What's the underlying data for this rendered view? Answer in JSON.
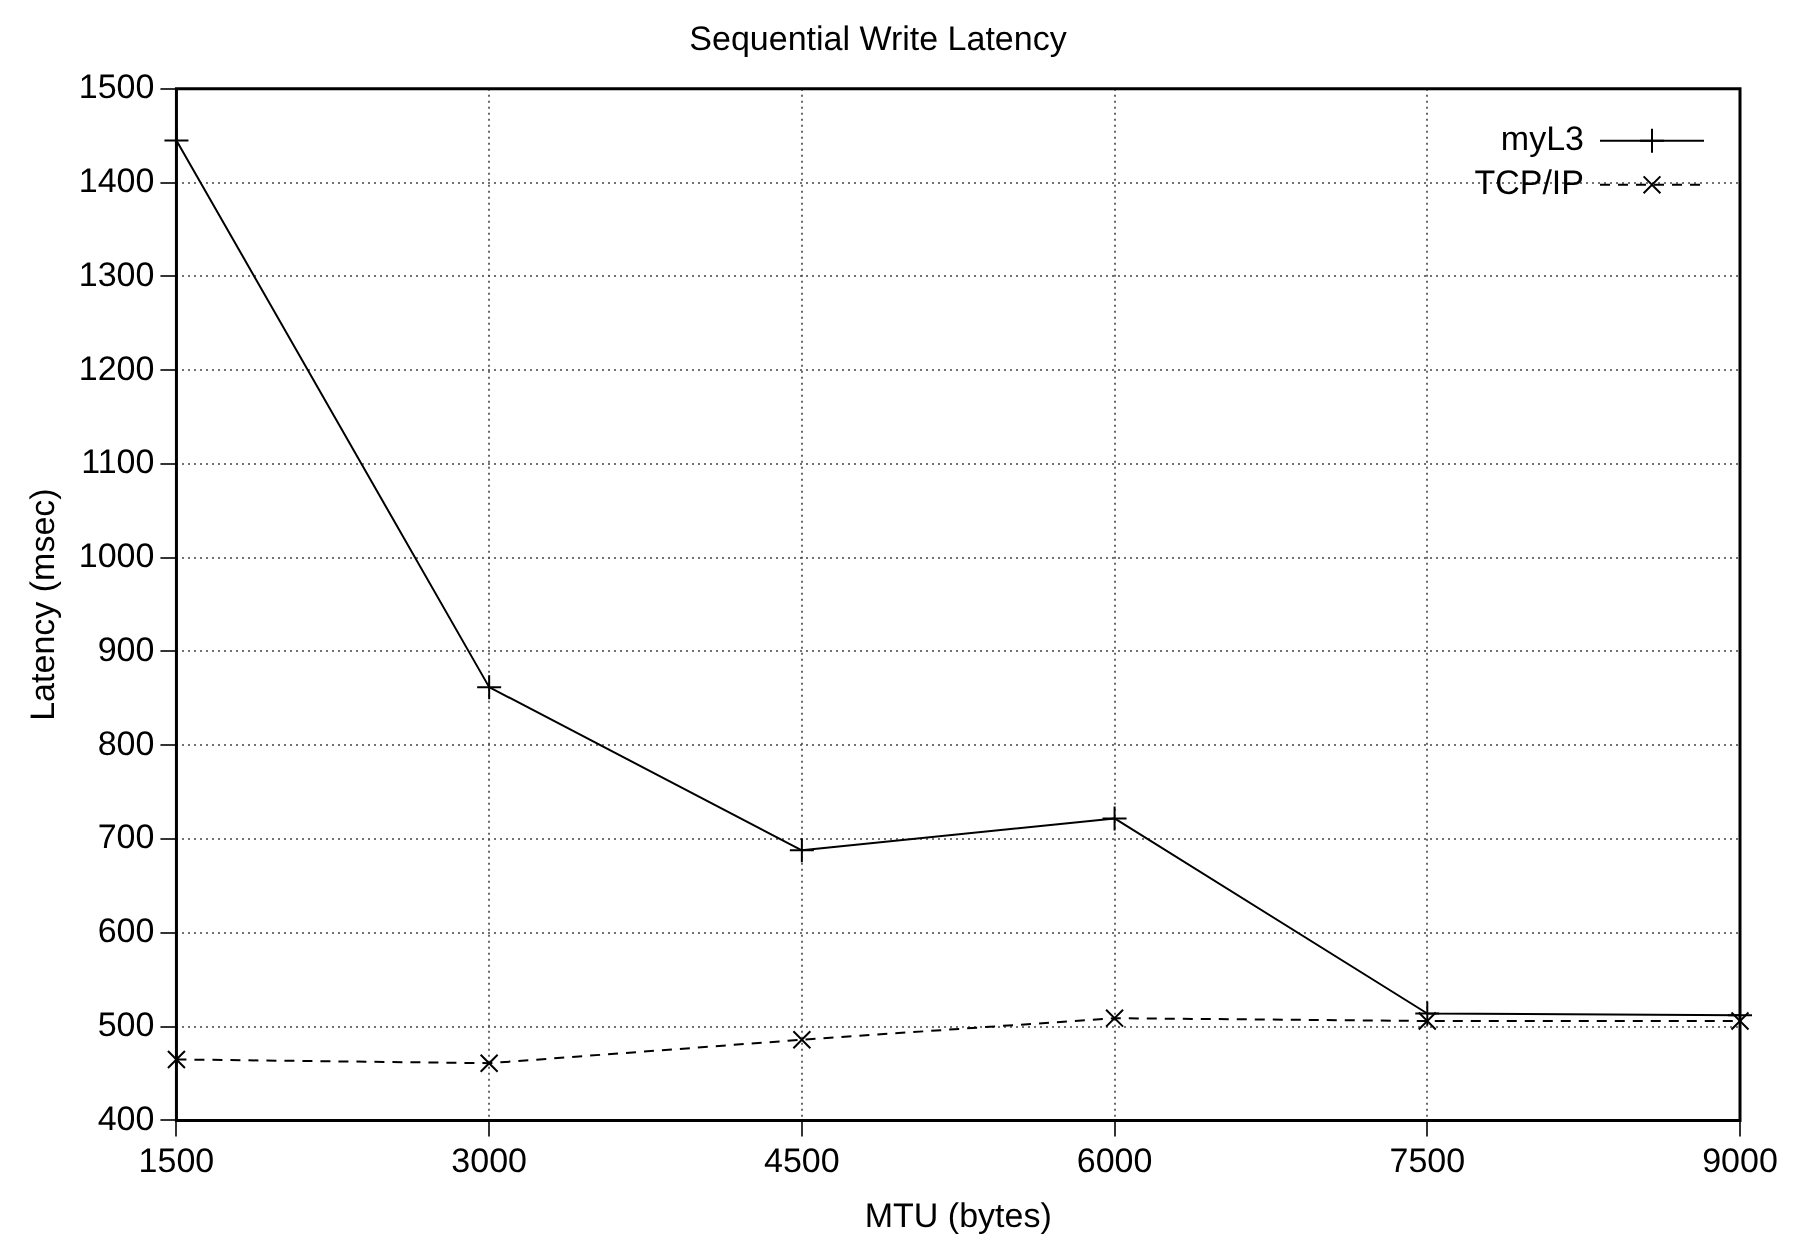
{
  "chart_data": {
    "type": "line",
    "title": "Sequential Write Latency",
    "xlabel": "MTU (bytes)",
    "ylabel": "Latency (msec)",
    "x": [
      1500,
      3000,
      4500,
      6000,
      7500,
      9000
    ],
    "series": [
      {
        "name": "myL3",
        "color": "#000000",
        "values": [
          1445,
          862,
          688,
          722,
          514,
          512
        ],
        "marker": "cross",
        "line_style": "solid"
      },
      {
        "name": "TCP/IP",
        "color": "#000000",
        "values": [
          465,
          461,
          486,
          509,
          506,
          506
        ],
        "marker": "x",
        "line_style": "dashed"
      }
    ],
    "xlim": [
      1500,
      9000
    ],
    "xticks": [
      1500,
      3000,
      4500,
      6000,
      7500,
      9000
    ],
    "ylim": [
      400,
      1500
    ],
    "yticks": [
      400,
      500,
      600,
      700,
      800,
      900,
      1000,
      1100,
      1200,
      1300,
      1400,
      1500
    ],
    "grid": true,
    "legend": "top right"
  }
}
